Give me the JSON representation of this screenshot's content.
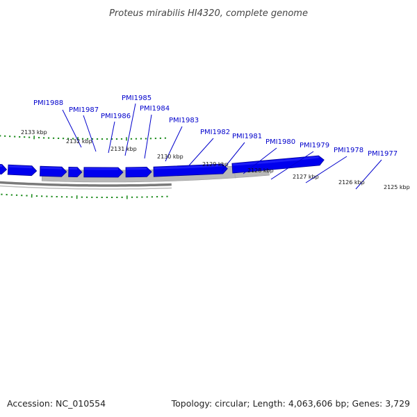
{
  "title": "Proteus mirabilis HI4320, complete genome",
  "footer": {
    "accession": "Accession: NC_010554",
    "summary": "Topology: circular; Length: 4,063,606 bp; Genes: 3,729"
  },
  "colors": {
    "gene_fill": "#0000ee",
    "gene_highlight": "#3535ff",
    "gene_shadow": "#000099",
    "tick": "#1a8a1a",
    "backbone": "#7a7a7a",
    "region_fill": "#b8b8b8",
    "label": "#0000cc",
    "leader": "#0000cc"
  },
  "kbp_labels": [
    "2133 kbp",
    "2132 kbp",
    "2131 kbp",
    "2130 kbp",
    "2129 kbp",
    "2128 kbp",
    "2127 kbp",
    "2126 kbp",
    "2125 kbp"
  ],
  "genes": [
    {
      "name": "PMI1988"
    },
    {
      "name": "PMI1987"
    },
    {
      "name": "PMI1986"
    },
    {
      "name": "PMI1985"
    },
    {
      "name": "PMI1984"
    },
    {
      "name": "PMI1983"
    },
    {
      "name": "PMI1982"
    },
    {
      "name": "PMI1981"
    },
    {
      "name": "PMI1980"
    },
    {
      "name": "PMI1979"
    },
    {
      "name": "PMI1978"
    },
    {
      "name": "PMI1977"
    }
  ]
}
